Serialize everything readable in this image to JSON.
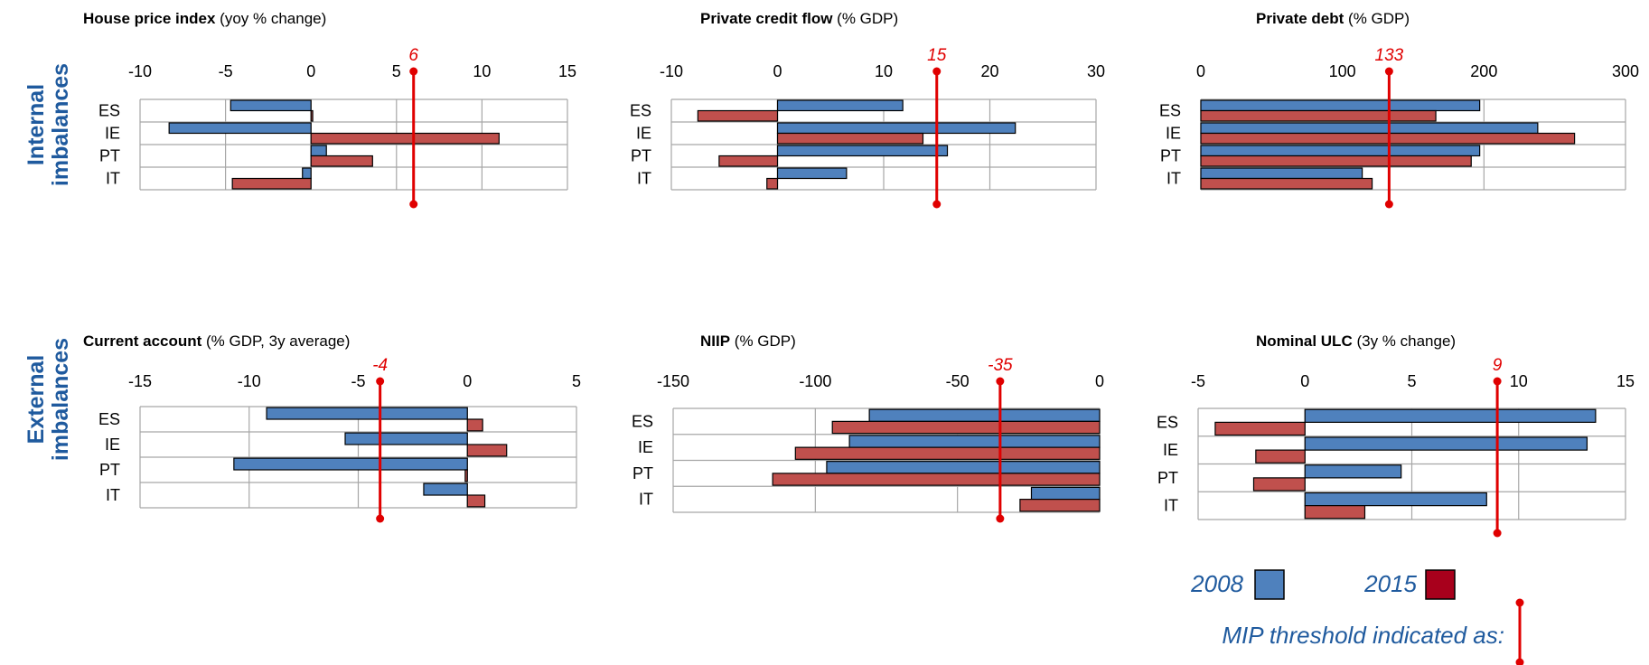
{
  "row_labels": {
    "internal": [
      "Internal",
      "imbalances"
    ],
    "external": [
      "External",
      "imbalances"
    ]
  },
  "colors": {
    "y2008": "#4f81bd",
    "y2015": "#c0504d",
    "threshold": "#e00000",
    "label_blue": "#1f5a9e"
  },
  "legend": {
    "label_2008": "2008",
    "label_2015": "2015",
    "threshold_text": "MIP threshold indicated as:",
    "color_2008": "#4f81bd",
    "color_2015": "#a8001c"
  },
  "chart_data": [
    {
      "type": "bar",
      "title_bold": "House price index",
      "title_rest": " (yoy % change)",
      "categories": [
        "ES",
        "IE",
        "PT",
        "IT"
      ],
      "xlim": [
        -10,
        15
      ],
      "ticks": [
        -10,
        -5,
        0,
        5,
        10,
        15
      ],
      "series": [
        {
          "name": "2008",
          "values": [
            -4.7,
            -8.3,
            0.9,
            -0.5
          ]
        },
        {
          "name": "2015",
          "values": [
            0.1,
            11.0,
            3.6,
            -4.6
          ]
        }
      ],
      "threshold": 6,
      "threshold_label": "6"
    },
    {
      "type": "bar",
      "title_bold": "Private credit flow",
      "title_rest": " (% GDP)",
      "categories": [
        "ES",
        "IE",
        "PT",
        "IT"
      ],
      "xlim": [
        -10,
        30
      ],
      "ticks": [
        -10,
        0,
        10,
        20,
        30
      ],
      "series": [
        {
          "name": "2008",
          "values": [
            11.8,
            22.4,
            16.0,
            6.5
          ]
        },
        {
          "name": "2015",
          "values": [
            -7.5,
            13.7,
            -5.5,
            -1.0
          ]
        }
      ],
      "threshold": 15,
      "threshold_label": "15"
    },
    {
      "type": "bar",
      "title_bold": "Private debt",
      "title_rest": " (% GDP)",
      "categories": [
        "ES",
        "IE",
        "PT",
        "IT"
      ],
      "xlim": [
        0,
        300
      ],
      "ticks": [
        0,
        100,
        200,
        300
      ],
      "series": [
        {
          "name": "2008",
          "values": [
            197,
            238,
            197,
            114
          ]
        },
        {
          "name": "2015",
          "values": [
            166,
            264,
            191,
            121
          ]
        }
      ],
      "threshold": 133,
      "threshold_label": "133"
    },
    {
      "type": "bar",
      "title_bold": "Current account",
      "title_rest": " (% GDP, 3y average)",
      "categories": [
        "ES",
        "IE",
        "PT",
        "IT"
      ],
      "xlim": [
        -15,
        5
      ],
      "ticks": [
        -15,
        -10,
        -5,
        0,
        5
      ],
      "series": [
        {
          "name": "2008",
          "values": [
            -9.2,
            -5.6,
            -10.7,
            -2.0
          ]
        },
        {
          "name": "2015",
          "values": [
            0.7,
            1.8,
            -0.1,
            0.8
          ]
        }
      ],
      "threshold": -4,
      "threshold_label": "-4"
    },
    {
      "type": "bar",
      "title_bold": "NIIP",
      "title_rest": " (% GDP)",
      "categories": [
        "ES",
        "IE",
        "PT",
        "IT"
      ],
      "xlim": [
        -150,
        0
      ],
      "ticks": [
        -150,
        -100,
        -50,
        0
      ],
      "series": [
        {
          "name": "2008",
          "values": [
            -81,
            -88,
            -96,
            -24
          ]
        },
        {
          "name": "2015",
          "values": [
            -94,
            -107,
            -115,
            -28
          ]
        }
      ],
      "threshold": -35,
      "threshold_label": "-35"
    },
    {
      "type": "bar",
      "title_bold": "Nominal ULC",
      "title_rest": " (3y % change)",
      "categories": [
        "ES",
        "IE",
        "PT",
        "IT"
      ],
      "xlim": [
        -5,
        15
      ],
      "ticks": [
        -5,
        0,
        5,
        10,
        15
      ],
      "series": [
        {
          "name": "2008",
          "values": [
            13.6,
            13.2,
            4.5,
            8.5
          ]
        },
        {
          "name": "2015",
          "values": [
            -4.2,
            -2.3,
            -2.4,
            2.8
          ]
        }
      ],
      "threshold": 9,
      "threshold_label": "9"
    }
  ]
}
